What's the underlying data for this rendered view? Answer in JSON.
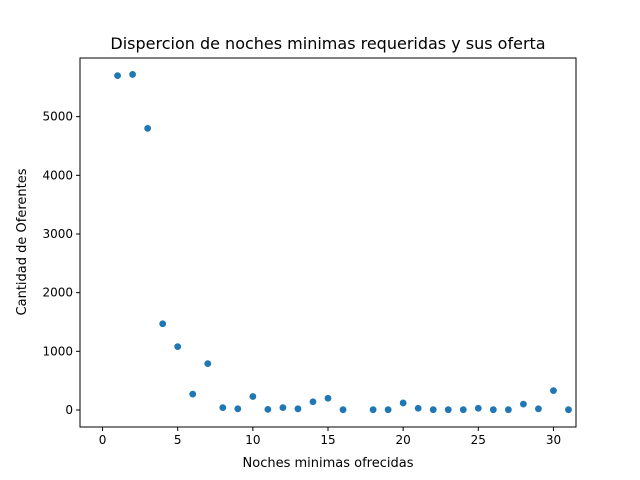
{
  "chart_data": {
    "type": "scatter",
    "title": "Dispercion de noches minimas requeridas y sus oferta",
    "xlabel": "Noches minimas ofrecidas",
    "ylabel": "Cantidad de Oferentes",
    "xlim": [
      -1.5,
      31.5
    ],
    "ylim": [
      -290,
      6000
    ],
    "xticks": [
      0,
      5,
      10,
      15,
      20,
      25,
      30
    ],
    "yticks": [
      0,
      1000,
      2000,
      3000,
      4000,
      5000
    ],
    "grid": false,
    "point_color": "#1f77b4",
    "points": [
      {
        "x": 1,
        "y": 5700
      },
      {
        "x": 2,
        "y": 5720
      },
      {
        "x": 3,
        "y": 4800
      },
      {
        "x": 4,
        "y": 1470
      },
      {
        "x": 5,
        "y": 1080
      },
      {
        "x": 6,
        "y": 270
      },
      {
        "x": 7,
        "y": 790
      },
      {
        "x": 8,
        "y": 40
      },
      {
        "x": 9,
        "y": 20
      },
      {
        "x": 10,
        "y": 230
      },
      {
        "x": 11,
        "y": 10
      },
      {
        "x": 12,
        "y": 40
      },
      {
        "x": 13,
        "y": 20
      },
      {
        "x": 14,
        "y": 140
      },
      {
        "x": 15,
        "y": 200
      },
      {
        "x": 16,
        "y": 5
      },
      {
        "x": 18,
        "y": 5
      },
      {
        "x": 19,
        "y": 5
      },
      {
        "x": 20,
        "y": 120
      },
      {
        "x": 21,
        "y": 30
      },
      {
        "x": 22,
        "y": 5
      },
      {
        "x": 23,
        "y": 5
      },
      {
        "x": 24,
        "y": 5
      },
      {
        "x": 25,
        "y": 30
      },
      {
        "x": 26,
        "y": 5
      },
      {
        "x": 27,
        "y": 5
      },
      {
        "x": 28,
        "y": 100
      },
      {
        "x": 29,
        "y": 20
      },
      {
        "x": 30,
        "y": 330
      },
      {
        "x": 31,
        "y": 5
      }
    ]
  }
}
